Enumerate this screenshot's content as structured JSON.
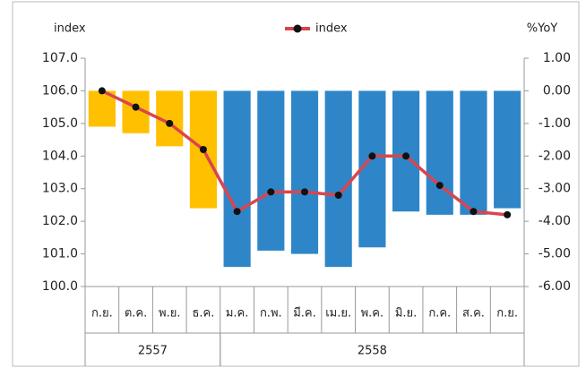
{
  "chart_data": {
    "type": "bar-line",
    "y_label": "index",
    "y2_label": "%YoY",
    "categories": [
      "ก.ย.",
      "ต.ค.",
      "พ.ย.",
      "ธ.ค.",
      "ม.ค.",
      "ก.พ.",
      "มี.ค.",
      "เม.ย.",
      "พ.ค.",
      "มิ.ย.",
      "ก.ค.",
      "ส.ค.",
      "ก.ย."
    ],
    "groups": [
      {
        "label": "2557",
        "span": 4
      },
      {
        "label": "2558",
        "span": 9
      }
    ],
    "series": [
      {
        "type": "bar",
        "axis": "y2",
        "colors": [
          "#ffc000",
          "#ffc000",
          "#ffc000",
          "#ffc000",
          "#2e86c8",
          "#2e86c8",
          "#2e86c8",
          "#2e86c8",
          "#2e86c8",
          "#2e86c8",
          "#2e86c8",
          "#2e86c8",
          "#2e86c8"
        ],
        "values": [
          -1.1,
          -1.3,
          -1.7,
          -3.6,
          -5.4,
          -4.9,
          -5.0,
          -5.4,
          -4.8,
          -3.7,
          -3.8,
          -3.8,
          -3.6
        ]
      },
      {
        "type": "line",
        "name": "index",
        "color": "#d9454f",
        "values": [
          106.0,
          105.5,
          105.0,
          104.2,
          102.3,
          102.9,
          102.9,
          102.8,
          104.0,
          104.0,
          103.1,
          102.3,
          102.2
        ]
      }
    ],
    "ylim": [
      100,
      107
    ],
    "yticks": [
      {
        "value": 100,
        "label": "100.0"
      },
      {
        "value": 101,
        "label": "101.0"
      },
      {
        "value": 102,
        "label": "102.0"
      },
      {
        "value": 103,
        "label": "103.0"
      },
      {
        "value": 104,
        "label": "104.0"
      },
      {
        "value": 105,
        "label": "105.0"
      },
      {
        "value": 106,
        "label": "106.0"
      },
      {
        "value": 107,
        "label": "107.0"
      }
    ],
    "y2lim": [
      -6,
      1
    ],
    "y2ticks": [
      {
        "value": -6,
        "label": "-6.00"
      },
      {
        "value": -5,
        "label": "-5.00"
      },
      {
        "value": -4,
        "label": "-4.00"
      },
      {
        "value": -3,
        "label": "-3.00"
      },
      {
        "value": -2,
        "label": "-2.00"
      },
      {
        "value": -1,
        "label": "-1.00"
      },
      {
        "value": 0,
        "label": "0.00"
      },
      {
        "value": 1,
        "label": "1.00"
      }
    ]
  }
}
